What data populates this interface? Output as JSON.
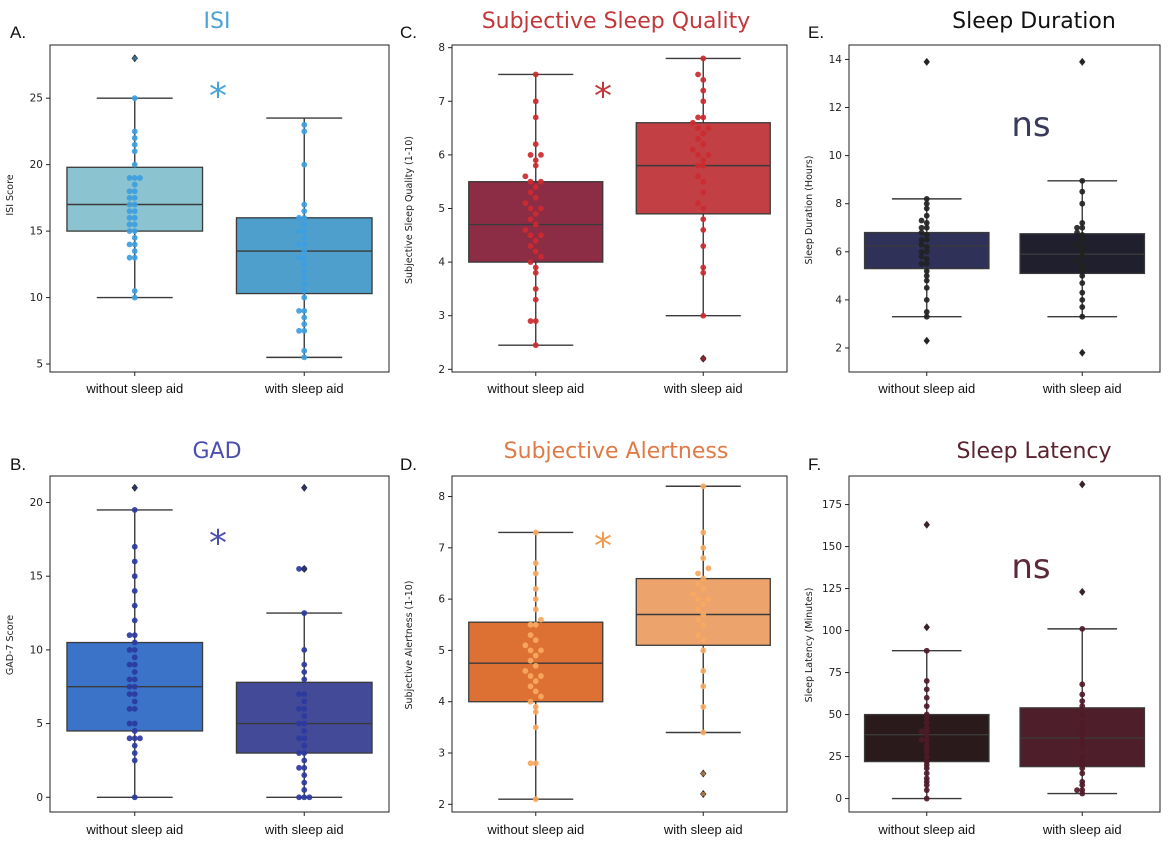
{
  "chart_data": [
    {
      "type": "box",
      "panel": "A.",
      "title": "ISI",
      "title_color": "#4aa3d6",
      "ylabel": "ISI Score",
      "ylim": [
        4.4,
        29.0
      ],
      "yticks": [
        5,
        10,
        15,
        20,
        25
      ],
      "significance": "*",
      "sig_color": "#4aa3d6",
      "categories": [
        "without sleep aid",
        "with sleep aid"
      ],
      "boxes": [
        {
          "category": "without sleep aid",
          "color": "#8bc3d0",
          "point_color": "#3d9ee0",
          "q1": 15.0,
          "median": 17.0,
          "q3": 19.8,
          "whisker_low": 10.0,
          "whisker_high": 25.0,
          "outliers": [
            28.0
          ],
          "points": [
            10.0,
            10.5,
            13.0,
            13.0,
            13.5,
            14.0,
            14.0,
            14.5,
            15.0,
            15.0,
            15.5,
            15.5,
            16.0,
            16.0,
            16.5,
            16.5,
            17.0,
            17.0,
            17.5,
            17.5,
            18.0,
            18.0,
            18.5,
            19.0,
            19.0,
            19.0,
            20.0,
            21.0,
            21.5,
            22.0,
            22.5,
            25.0
          ]
        },
        {
          "category": "with sleep aid",
          "color": "#4f9fcd",
          "point_color": "#3d9ee0",
          "q1": 10.3,
          "median": 13.5,
          "q3": 16.0,
          "whisker_low": 5.5,
          "whisker_high": 23.5,
          "outliers": [],
          "points": [
            5.5,
            6.0,
            7.5,
            7.5,
            8.0,
            8.5,
            9.0,
            9.0,
            10.0,
            10.5,
            11.0,
            11.5,
            12.0,
            12.5,
            13.0,
            13.0,
            13.5,
            14.0,
            14.0,
            14.5,
            15.0,
            15.0,
            15.5,
            16.0,
            16.0,
            16.5,
            17.0,
            20.0,
            22.5,
            23.0
          ]
        }
      ]
    },
    {
      "type": "box",
      "panel": "C.",
      "title": "Subjective Sleep Quality",
      "title_color": "#c2373a",
      "ylabel": "Subjective Sleep Quality (1-10)",
      "ylim": [
        1.95,
        8.05
      ],
      "yticks": [
        2,
        3,
        4,
        5,
        6,
        7,
        8
      ],
      "significance": "*",
      "sig_color": "#c2373a",
      "categories": [
        "without sleep aid",
        "with sleep aid"
      ],
      "boxes": [
        {
          "category": "without sleep aid",
          "color": "#8c2c45",
          "point_color": "#cc2a2f",
          "q1": 4.0,
          "median": 4.7,
          "q3": 5.5,
          "whisker_low": 2.45,
          "whisker_high": 7.5,
          "outliers": [],
          "points": [
            2.45,
            2.9,
            2.9,
            3.3,
            3.5,
            3.8,
            3.9,
            4.0,
            4.1,
            4.2,
            4.3,
            4.4,
            4.5,
            4.5,
            4.6,
            4.7,
            4.8,
            4.9,
            5.0,
            5.0,
            5.1,
            5.2,
            5.3,
            5.4,
            5.5,
            5.5,
            5.6,
            5.8,
            5.9,
            6.0,
            6.0,
            6.2,
            6.7,
            7.0,
            7.5
          ]
        },
        {
          "category": "with sleep aid",
          "color": "#c23f43",
          "point_color": "#cc2a2f",
          "q1": 4.9,
          "median": 5.8,
          "q3": 6.6,
          "whisker_low": 3.0,
          "whisker_high": 7.8,
          "outliers": [
            2.2
          ],
          "points": [
            3.0,
            3.8,
            3.9,
            4.3,
            4.6,
            4.8,
            5.0,
            5.1,
            5.3,
            5.5,
            5.6,
            5.8,
            5.8,
            5.9,
            6.0,
            6.0,
            6.1,
            6.2,
            6.3,
            6.4,
            6.5,
            6.5,
            6.6,
            6.7,
            6.7,
            7.0,
            7.2,
            7.4,
            7.5,
            7.8,
            2.2
          ]
        }
      ]
    },
    {
      "type": "box",
      "panel": "E.",
      "title": "Sleep Duration",
      "title_color": "#111111",
      "ylabel": "Sleep Duration (Hours)",
      "ylim": [
        1.0,
        14.6
      ],
      "yticks": [
        2,
        4,
        6,
        8,
        10,
        12,
        14
      ],
      "significance": "ns",
      "sig_color": "#3a3a5a",
      "categories": [
        "without sleep aid",
        "with sleep aid"
      ],
      "boxes": [
        {
          "category": "without sleep aid",
          "color": "#2f3159",
          "point_color": "#222222",
          "q1": 5.3,
          "median": 6.25,
          "q3": 6.8,
          "whisker_low": 3.3,
          "whisker_high": 8.2,
          "outliers": [
            2.3,
            13.9
          ],
          "points": [
            3.3,
            3.5,
            4.0,
            4.5,
            4.8,
            5.0,
            5.2,
            5.5,
            5.5,
            5.7,
            5.8,
            6.0,
            6.0,
            6.2,
            6.3,
            6.5,
            6.5,
            6.7,
            6.8,
            7.0,
            7.0,
            7.2,
            7.3,
            7.5,
            7.8,
            8.0,
            8.2
          ]
        },
        {
          "category": "with sleep aid",
          "color": "#1f1f2d",
          "point_color": "#222222",
          "q1": 5.1,
          "median": 5.9,
          "q3": 6.75,
          "whisker_low": 3.3,
          "whisker_high": 8.95,
          "outliers": [
            1.8,
            13.9
          ],
          "points": [
            3.3,
            3.7,
            4.0,
            4.3,
            4.7,
            5.0,
            5.2,
            5.4,
            5.6,
            5.8,
            6.0,
            6.2,
            6.3,
            6.5,
            6.7,
            6.8,
            7.0,
            7.0,
            7.2,
            8.0,
            8.5,
            8.95
          ]
        }
      ]
    },
    {
      "type": "box",
      "panel": "B.",
      "title": "GAD",
      "title_color": "#4a4fb0",
      "ylabel": "GAD-7 Score",
      "ylim": [
        -1.0,
        21.8
      ],
      "yticks": [
        0,
        5,
        10,
        15,
        20
      ],
      "significance": "*",
      "sig_color": "#4a4fb0",
      "categories": [
        "without sleep aid",
        "with sleep aid"
      ],
      "boxes": [
        {
          "category": "without sleep aid",
          "color": "#3a73c8",
          "point_color": "#2c3a9e",
          "q1": 4.5,
          "median": 7.5,
          "q3": 10.5,
          "whisker_low": 0.0,
          "whisker_high": 19.5,
          "outliers": [
            21.0
          ],
          "points": [
            0,
            2.5,
            3,
            3.5,
            4,
            4,
            4,
            4.5,
            5,
            5,
            6,
            6,
            6.5,
            7,
            7,
            7.5,
            7.5,
            8,
            8,
            8.5,
            9,
            9,
            9.5,
            10,
            10,
            10.5,
            11,
            11,
            12,
            13,
            14,
            15,
            16,
            17,
            19.5
          ]
        },
        {
          "category": "with sleep aid",
          "color": "#434a98",
          "point_color": "#2c3a9e",
          "q1": 3.0,
          "median": 5.0,
          "q3": 7.8,
          "whisker_low": 0.0,
          "whisker_high": 12.5,
          "outliers": [
            15.5,
            21.0
          ],
          "points": [
            0,
            0,
            0,
            0.5,
            1,
            1.5,
            2,
            2,
            2.5,
            3,
            3,
            3.5,
            4,
            4,
            4.5,
            5,
            5,
            5.5,
            6,
            6,
            6.5,
            7,
            7,
            8,
            8.5,
            9,
            10,
            12.5,
            15.5,
            15.5
          ]
        }
      ]
    },
    {
      "type": "box",
      "panel": "D.",
      "title": "Subjective Alertness",
      "title_color": "#e07a46",
      "ylabel": "Subjective Alertness (1-10)",
      "ylim": [
        1.85,
        8.4
      ],
      "yticks": [
        2,
        3,
        4,
        5,
        6,
        7,
        8
      ],
      "significance": "*",
      "sig_color": "#f29a52",
      "categories": [
        "without sleep aid",
        "with sleep aid"
      ],
      "boxes": [
        {
          "category": "without sleep aid",
          "color": "#dd7033",
          "point_color": "#f8a860",
          "q1": 4.0,
          "median": 4.75,
          "q3": 5.55,
          "whisker_low": 2.1,
          "whisker_high": 7.3,
          "outliers": [],
          "points": [
            2.1,
            2.8,
            2.8,
            3.5,
            3.8,
            3.9,
            4.0,
            4.1,
            4.2,
            4.3,
            4.4,
            4.5,
            4.5,
            4.6,
            4.7,
            4.8,
            4.9,
            5.0,
            5.0,
            5.1,
            5.2,
            5.3,
            5.5,
            5.5,
            5.6,
            5.8,
            6.0,
            6.2,
            6.5,
            6.7,
            7.3
          ]
        },
        {
          "category": "with sleep aid",
          "color": "#eca46c",
          "point_color": "#f8a860",
          "q1": 5.1,
          "median": 5.7,
          "q3": 6.4,
          "whisker_low": 3.4,
          "whisker_high": 8.2,
          "outliers": [
            2.2,
            2.6
          ],
          "points": [
            3.4,
            3.9,
            4.3,
            4.6,
            5.0,
            5.2,
            5.3,
            5.5,
            5.6,
            5.7,
            5.8,
            5.9,
            6.0,
            6.0,
            6.1,
            6.2,
            6.3,
            6.4,
            6.5,
            6.6,
            6.8,
            7.0,
            7.3,
            8.2
          ]
        }
      ]
    },
    {
      "type": "box",
      "panel": "F.",
      "title": "Sleep Latency",
      "title_color": "#5a2330",
      "ylabel": "Sleep Latency (Minutes)",
      "ylim": [
        -8,
        192
      ],
      "yticks": [
        0,
        25,
        50,
        75,
        100,
        125,
        150,
        175
      ],
      "significance": "ns",
      "sig_color": "#5a2a38",
      "categories": [
        "without sleep aid",
        "with sleep aid"
      ],
      "boxes": [
        {
          "category": "without sleep aid",
          "color": "#2a1a1c",
          "point_color": "#4e1a28",
          "q1": 22,
          "median": 38,
          "q3": 50,
          "whisker_low": 0,
          "whisker_high": 88,
          "outliers": [
            102,
            163
          ],
          "points": [
            0,
            5,
            8,
            10,
            12,
            15,
            18,
            20,
            22,
            25,
            28,
            30,
            32,
            35,
            35,
            38,
            40,
            40,
            42,
            45,
            48,
            50,
            55,
            60,
            65,
            70,
            88
          ]
        },
        {
          "category": "with sleep aid",
          "color": "#4e1f2a",
          "point_color": "#4e1a28",
          "q1": 19,
          "median": 36,
          "q3": 54,
          "whisker_low": 3,
          "whisker_high": 101,
          "outliers": [
            123,
            187
          ],
          "points": [
            3,
            5,
            5,
            8,
            10,
            15,
            18,
            20,
            22,
            25,
            30,
            32,
            35,
            38,
            40,
            42,
            45,
            50,
            55,
            58,
            62,
            68,
            101
          ]
        }
      ]
    }
  ]
}
